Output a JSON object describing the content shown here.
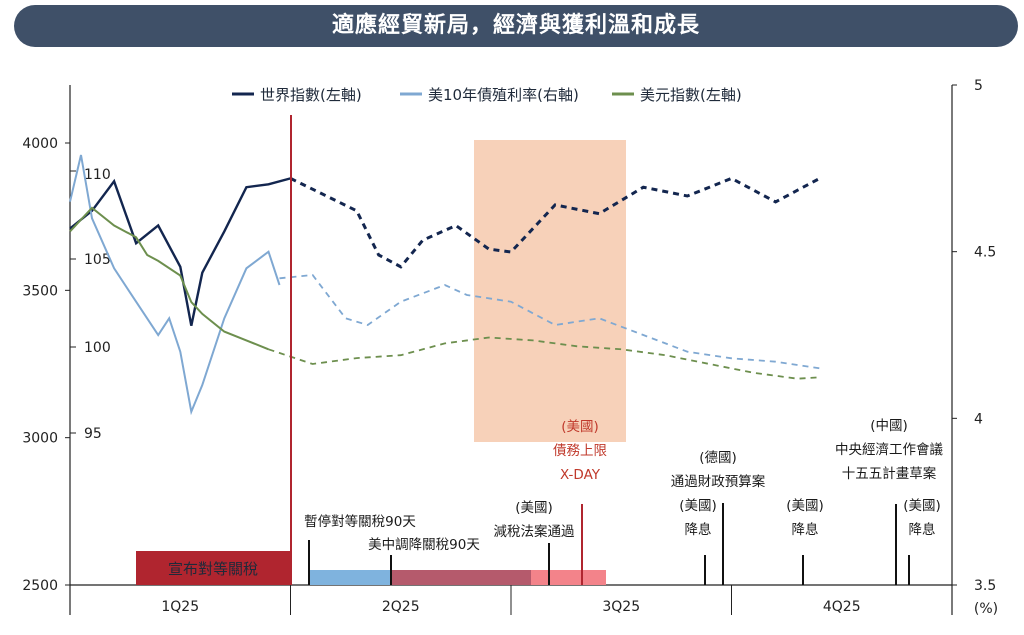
{
  "banner": {
    "title": "適應經貿新局，經濟與獲利溫和成長"
  },
  "chart_data": {
    "type": "line",
    "legend": [
      "世界指數(左軸)",
      "美10年債殖利率(右軸)",
      "美元指數(左軸)"
    ],
    "left_axis": {
      "ticks": [
        "4000",
        "3500",
        "3000",
        "2500"
      ],
      "range": [
        2500,
        4000
      ]
    },
    "dxy_axis": {
      "ticks": [
        "110",
        "105",
        "100",
        "95"
      ]
    },
    "right_axis": {
      "ticks": [
        "5",
        "4.5",
        "4",
        "3.5"
      ],
      "unit": "(%)",
      "range": [
        3.5,
        5
      ]
    },
    "quarters": [
      "1Q25",
      "2Q25",
      "3Q25",
      "4Q25"
    ],
    "colors": {
      "world": "#13264f",
      "yield": "#7fa8d2",
      "dxy": "#6d8f4e",
      "accent": "#b0252f",
      "shade": "#f6c9ad"
    },
    "series": [
      {
        "name": "世界指數(左軸)",
        "actual": [
          [
            0,
            3710
          ],
          [
            0.1,
            3770
          ],
          [
            0.2,
            3870
          ],
          [
            0.3,
            3660
          ],
          [
            0.4,
            3720
          ],
          [
            0.5,
            3580
          ],
          [
            0.55,
            3380
          ],
          [
            0.6,
            3560
          ],
          [
            0.7,
            3700
          ],
          [
            0.8,
            3850
          ],
          [
            0.9,
            3860
          ],
          [
            1.0,
            3880
          ]
        ],
        "forecast": [
          [
            1.0,
            3880
          ],
          [
            1.3,
            3770
          ],
          [
            1.4,
            3620
          ],
          [
            1.5,
            3580
          ],
          [
            1.6,
            3670
          ],
          [
            1.75,
            3720
          ],
          [
            1.9,
            3640
          ],
          [
            2.0,
            3630
          ],
          [
            2.2,
            3790
          ],
          [
            2.4,
            3760
          ],
          [
            2.6,
            3850
          ],
          [
            2.8,
            3820
          ],
          [
            3.0,
            3880
          ],
          [
            3.2,
            3800
          ],
          [
            3.4,
            3880
          ]
        ]
      },
      {
        "name": "美10年債殖利率(右軸)",
        "actual": [
          [
            0,
            4.65
          ],
          [
            0.05,
            4.79
          ],
          [
            0.1,
            4.6
          ],
          [
            0.2,
            4.45
          ],
          [
            0.3,
            4.35
          ],
          [
            0.4,
            4.25
          ],
          [
            0.45,
            4.3
          ],
          [
            0.5,
            4.2
          ],
          [
            0.55,
            4.02
          ],
          [
            0.6,
            4.1
          ],
          [
            0.7,
            4.3
          ],
          [
            0.8,
            4.45
          ],
          [
            0.9,
            4.5
          ],
          [
            0.95,
            4.4
          ]
        ],
        "forecast": [
          [
            0.95,
            4.42
          ],
          [
            1.1,
            4.43
          ],
          [
            1.25,
            4.3
          ],
          [
            1.35,
            4.28
          ],
          [
            1.5,
            4.35
          ],
          [
            1.7,
            4.4
          ],
          [
            1.8,
            4.37
          ],
          [
            2.0,
            4.35
          ],
          [
            2.2,
            4.28
          ],
          [
            2.4,
            4.3
          ],
          [
            2.6,
            4.25
          ],
          [
            2.8,
            4.2
          ],
          [
            3.0,
            4.18
          ],
          [
            3.2,
            4.17
          ],
          [
            3.4,
            4.15
          ]
        ]
      },
      {
        "name": "美元指數(左軸)",
        "actual": [
          [
            0,
            3700
          ],
          [
            0.1,
            3780
          ],
          [
            0.2,
            3720
          ],
          [
            0.3,
            3680
          ],
          [
            0.35,
            3620
          ],
          [
            0.4,
            3600
          ],
          [
            0.5,
            3550
          ],
          [
            0.55,
            3460
          ],
          [
            0.6,
            3420
          ],
          [
            0.7,
            3360
          ],
          [
            0.8,
            3330
          ],
          [
            0.9,
            3300
          ]
        ],
        "forecast": [
          [
            0.9,
            3300
          ],
          [
            1.1,
            3250
          ],
          [
            1.3,
            3270
          ],
          [
            1.5,
            3280
          ],
          [
            1.7,
            3320
          ],
          [
            1.9,
            3340
          ],
          [
            2.1,
            3330
          ],
          [
            2.3,
            3310
          ],
          [
            2.5,
            3300
          ],
          [
            2.7,
            3280
          ],
          [
            2.9,
            3250
          ],
          [
            3.1,
            3220
          ],
          [
            3.3,
            3200
          ],
          [
            3.4,
            3205
          ]
        ]
      }
    ],
    "shaded_label": "",
    "bars": [
      {
        "label": "宣布對等關稅"
      }
    ],
    "events": [
      {
        "lines": [
          "暫停對等關稅90天"
        ]
      },
      {
        "lines": [
          "美中調降關稅90天"
        ]
      },
      {
        "lines": [
          "(美國)",
          "減稅法案通過"
        ]
      },
      {
        "lines": [
          "(美國)",
          "債務上限",
          "X-DAY"
        ],
        "red": true
      },
      {
        "lines": [
          "(德國)",
          "通過財政預算案"
        ]
      },
      {
        "lines": [
          "(美國)",
          "降息"
        ]
      },
      {
        "lines": [
          "(美國)",
          "降息"
        ]
      },
      {
        "lines": [
          "(中國)",
          "中央經濟工作會議",
          "十五五計畫草案"
        ]
      },
      {
        "lines": [
          "(美國)",
          "降息"
        ]
      }
    ]
  }
}
